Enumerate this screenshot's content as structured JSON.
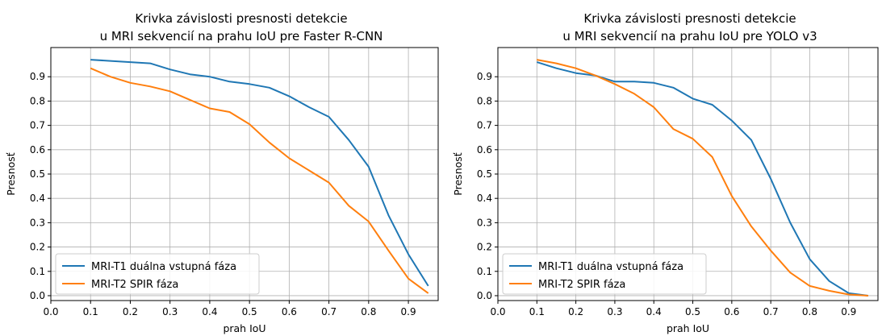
{
  "chart_data": [
    {
      "type": "line",
      "title": [
        "Krivka závislosti presnosti detekcie",
        "u MRI sekvencií na prahu IoU pre Faster R-CNN"
      ],
      "xlabel": "prah IoU",
      "ylabel": "Presnosť",
      "xlim": [
        0.0,
        0.975
      ],
      "ylim": [
        -0.02,
        1.02
      ],
      "xticks": [
        0.0,
        0.1,
        0.2,
        0.3,
        0.4,
        0.5,
        0.6,
        0.7,
        0.8,
        0.9
      ],
      "yticks": [
        0.0,
        0.1,
        0.2,
        0.3,
        0.4,
        0.5,
        0.6,
        0.7,
        0.8,
        0.9
      ],
      "grid": true,
      "legend_position": "bottom-left",
      "series": [
        {
          "name": "MRI-T1 duálna vstupná fáza",
          "color": "#1f77b4",
          "x": [
            0.1,
            0.15,
            0.2,
            0.25,
            0.3,
            0.35,
            0.4,
            0.45,
            0.5,
            0.55,
            0.6,
            0.65,
            0.7,
            0.75,
            0.8,
            0.85,
            0.9,
            0.95
          ],
          "y": [
            0.97,
            0.965,
            0.96,
            0.955,
            0.93,
            0.91,
            0.9,
            0.88,
            0.87,
            0.855,
            0.82,
            0.775,
            0.735,
            0.64,
            0.53,
            0.33,
            0.17,
            0.04
          ]
        },
        {
          "name": "MRI-T2 SPIR fáza",
          "color": "#ff7f0e",
          "x": [
            0.1,
            0.15,
            0.2,
            0.25,
            0.3,
            0.35,
            0.4,
            0.45,
            0.5,
            0.55,
            0.6,
            0.65,
            0.7,
            0.75,
            0.8,
            0.85,
            0.9,
            0.95
          ],
          "y": [
            0.935,
            0.9,
            0.875,
            0.86,
            0.84,
            0.805,
            0.77,
            0.755,
            0.705,
            0.63,
            0.565,
            0.515,
            0.465,
            0.37,
            0.305,
            0.185,
            0.07,
            0.01
          ]
        }
      ]
    },
    {
      "type": "line",
      "title": [
        "Krivka závislosti presnosti detekcie",
        "u MRI sekvencií na prahu IoU pre YOLO v3"
      ],
      "xlabel": "prah IoU",
      "ylabel": "Presnosť",
      "xlim": [
        0.0,
        0.975
      ],
      "ylim": [
        -0.02,
        1.02
      ],
      "xticks": [
        0.0,
        0.1,
        0.2,
        0.3,
        0.4,
        0.5,
        0.6,
        0.7,
        0.8,
        0.9
      ],
      "yticks": [
        0.0,
        0.1,
        0.2,
        0.3,
        0.4,
        0.5,
        0.6,
        0.7,
        0.8,
        0.9
      ],
      "grid": true,
      "legend_position": "bottom-left",
      "series": [
        {
          "name": "MRI-T1 duálna vstupná fáza",
          "color": "#1f77b4",
          "x": [
            0.1,
            0.15,
            0.2,
            0.25,
            0.3,
            0.35,
            0.4,
            0.45,
            0.5,
            0.55,
            0.6,
            0.65,
            0.7,
            0.75,
            0.8,
            0.85,
            0.9,
            0.95
          ],
          "y": [
            0.96,
            0.935,
            0.915,
            0.905,
            0.88,
            0.88,
            0.875,
            0.855,
            0.81,
            0.785,
            0.72,
            0.64,
            0.48,
            0.3,
            0.15,
            0.06,
            0.01,
            0.0
          ]
        },
        {
          "name": "MRI-T2 SPIR fáza",
          "color": "#ff7f0e",
          "x": [
            0.1,
            0.15,
            0.2,
            0.25,
            0.3,
            0.35,
            0.4,
            0.45,
            0.5,
            0.55,
            0.6,
            0.65,
            0.7,
            0.75,
            0.8,
            0.85,
            0.9,
            0.95
          ],
          "y": [
            0.97,
            0.955,
            0.935,
            0.905,
            0.87,
            0.83,
            0.775,
            0.685,
            0.645,
            0.57,
            0.41,
            0.285,
            0.185,
            0.095,
            0.04,
            0.02,
            0.005,
            0.0
          ]
        }
      ]
    }
  ]
}
